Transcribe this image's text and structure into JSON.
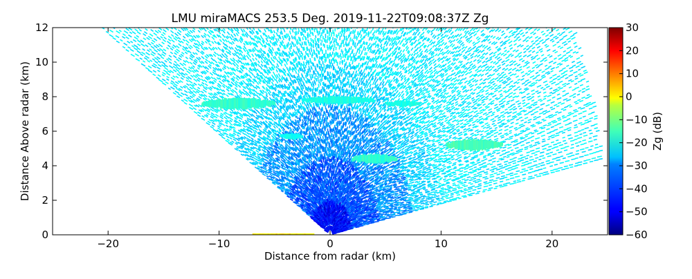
{
  "chart_data": {
    "type": "heatmap",
    "subtype": "rhi-scan",
    "title": "LMU miraMACS 253.5 Deg. 2019-11-22T09:08:37Z  Zg",
    "xlabel": "Distance from radar (km)",
    "ylabel": "Distance Above radar  (km)",
    "xlim": [
      -25,
      25
    ],
    "ylim": [
      0,
      12
    ],
    "xticks": [
      -20,
      -10,
      0,
      10,
      20
    ],
    "xtick_labels": [
      "−20",
      "−10",
      "0",
      "10",
      "20"
    ],
    "yticks": [
      0,
      2,
      4,
      6,
      8,
      10,
      12
    ],
    "ytick_labels": [
      "0",
      "2",
      "4",
      "6",
      "8",
      "10",
      "12"
    ],
    "grid": false,
    "colorbar": {
      "label": "Zg (dB)",
      "range": [
        -60,
        30
      ],
      "ticks": [
        30,
        20,
        10,
        0,
        -10,
        -20,
        -30,
        -40,
        -50,
        -60
      ],
      "tick_labels": [
        "30",
        "20",
        "10",
        "0",
        "−10",
        "−20",
        "−30",
        "−40",
        "−50",
        "−60"
      ],
      "colormap": "jet"
    },
    "scan": {
      "left_edge_elevation_deg": 150,
      "right_edge_elevation_deg": 10,
      "max_range_km": 25
    },
    "background_noise_dB": -28,
    "features": [
      {
        "name": "cloud-layer-left",
        "x": [
          -11.5,
          -5
        ],
        "y_center": 7.6,
        "thickness": 0.6,
        "zg": -22
      },
      {
        "name": "cloud-layer-mid",
        "x": [
          -2.5,
          4
        ],
        "y_center": 7.8,
        "thickness": 0.4,
        "zg": -24
      },
      {
        "name": "cloud-layer-right",
        "x": [
          5,
          8
        ],
        "y_center": 7.6,
        "thickness": 0.3,
        "zg": -24
      },
      {
        "name": "cloud-fragment-center-left",
        "x": [
          -4.5,
          -2.5
        ],
        "y_center": 5.7,
        "thickness": 0.3,
        "zg": -25
      },
      {
        "name": "cloud-fragment-center-right",
        "x": [
          2,
          6
        ],
        "y_center": 4.4,
        "thickness": 0.5,
        "zg": -22
      },
      {
        "name": "cloud-fragment-far-right",
        "x": [
          10.5,
          15.5
        ],
        "y_center": 5.2,
        "thickness": 0.6,
        "zg": -20
      }
    ]
  }
}
